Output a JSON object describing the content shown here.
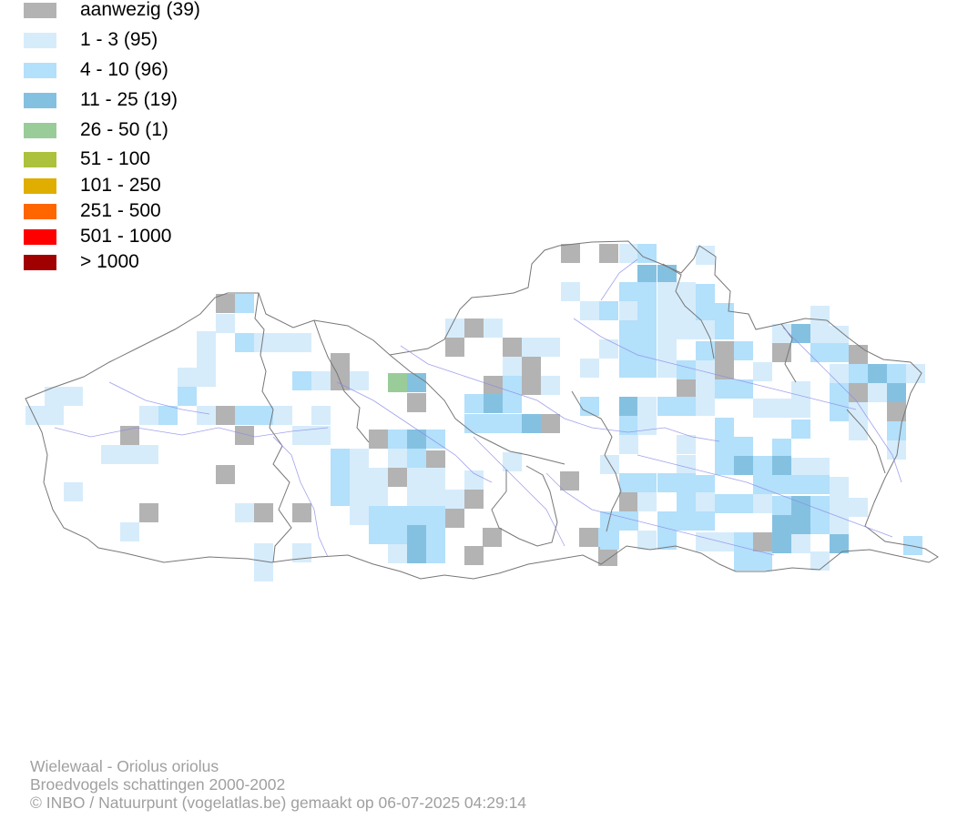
{
  "legend": [
    {
      "label": "aanwezig (39)",
      "color": "#b3b3b3"
    },
    {
      "label": "1 - 3 (95)",
      "color": "#d6ecfb"
    },
    {
      "label": "4 - 10 (96)",
      "color": "#b3e0fb"
    },
    {
      "label": "11 - 25 (19)",
      "color": "#84c1e1"
    },
    {
      "label": "26 - 50 (1)",
      "color": "#99cc99"
    },
    {
      "label": "51 - 100",
      "color": "#acc13c"
    },
    {
      "label": "101 - 250",
      "color": "#e0ae00"
    },
    {
      "label": "251 - 500",
      "color": "#ff6600"
    },
    {
      "label": "501 - 1000",
      "color": "#ff0000"
    },
    {
      "label": "> 1000",
      "color": "#a00000"
    }
  ],
  "colors": {
    "border": "#777777",
    "river": "#8a8ae8",
    "footer_text": "#a0a0a0"
  },
  "footer": {
    "line1": "Wielewaal - Oriolus oriolus",
    "line2": "Broedvogels schattingen 2000-2002",
    "line3": "© INBO / Natuurpunt (vogelatlas.be) gemaakt op 06-07-2025 04:29:14"
  }
}
